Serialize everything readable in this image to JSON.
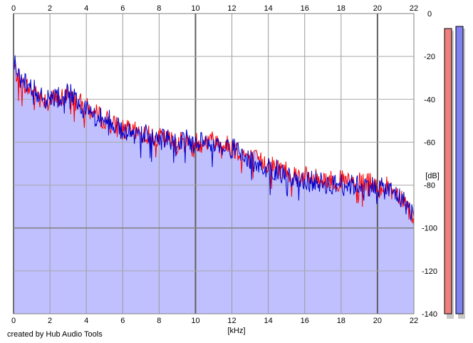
{
  "chart_data": {
    "type": "area",
    "xlabel": "[kHz]",
    "ylabel": "[dB]",
    "xlim": [
      0,
      22
    ],
    "ylim": [
      -140,
      0
    ],
    "x_ticks": [
      0,
      2,
      4,
      6,
      8,
      10,
      12,
      14,
      16,
      18,
      20,
      22
    ],
    "y_ticks": [
      0,
      -20,
      -40,
      -60,
      -80,
      -100,
      -120,
      -140
    ],
    "y_tick_labels": [
      "0",
      "-20",
      "-40",
      "-60",
      "-80",
      "-100",
      "-120",
      "-140"
    ],
    "grid": true,
    "series": [
      {
        "color": "#ff0000",
        "x": [
          0,
          0.5,
          1,
          1.5,
          2,
          2.5,
          3,
          3.5,
          4,
          4.5,
          5,
          5.5,
          6,
          6.5,
          7,
          7.5,
          8,
          8.5,
          9,
          9.5,
          10,
          10.5,
          11,
          11.5,
          12,
          12.5,
          13,
          13.5,
          14,
          14.5,
          15,
          15.5,
          16,
          16.5,
          17,
          17.5,
          18,
          18.5,
          19,
          19.5,
          20,
          20.5,
          21,
          21.5,
          22
        ],
        "values": [
          -25,
          -33,
          -36,
          -39,
          -40,
          -40,
          -38,
          -41,
          -44,
          -47,
          -49,
          -52,
          -54,
          -55,
          -56,
          -57,
          -58,
          -59,
          -60,
          -60,
          -60,
          -60,
          -59,
          -61,
          -62,
          -65,
          -67,
          -69,
          -70,
          -72,
          -73,
          -75,
          -76,
          -77,
          -77,
          -78,
          -78,
          -79,
          -79,
          -79,
          -80,
          -81,
          -83,
          -87,
          -96
        ]
      },
      {
        "color": "#0000cc",
        "x": [
          0,
          0.5,
          1,
          1.5,
          2,
          2.5,
          3,
          3.5,
          4,
          4.5,
          5,
          5.5,
          6,
          6.5,
          7,
          7.5,
          8,
          8.5,
          9,
          9.5,
          10,
          10.5,
          11,
          11.5,
          12,
          12.5,
          13,
          13.5,
          14,
          14.5,
          15,
          15.5,
          16,
          16.5,
          17,
          17.5,
          18,
          18.5,
          19,
          19.5,
          20,
          20.5,
          21,
          21.5,
          22
        ],
        "values": [
          -22,
          -32,
          -35,
          -38,
          -41,
          -39,
          -37,
          -40,
          -45,
          -48,
          -48,
          -51,
          -55,
          -54,
          -57,
          -56,
          -59,
          -58,
          -61,
          -59,
          -61,
          -59,
          -60,
          -62,
          -63,
          -64,
          -68,
          -70,
          -72,
          -73,
          -75,
          -77,
          -78,
          -78,
          -79,
          -80,
          -79,
          -80,
          -80,
          -80,
          -81,
          -82,
          -84,
          -88,
          -94
        ]
      }
    ],
    "fill_color": "#c0c0ff",
    "meters": [
      {
        "color": "#f08080",
        "level": -7
      },
      {
        "color": "#8080f0",
        "level": -6
      }
    ]
  },
  "credit": "created by Hub Audio Tools"
}
